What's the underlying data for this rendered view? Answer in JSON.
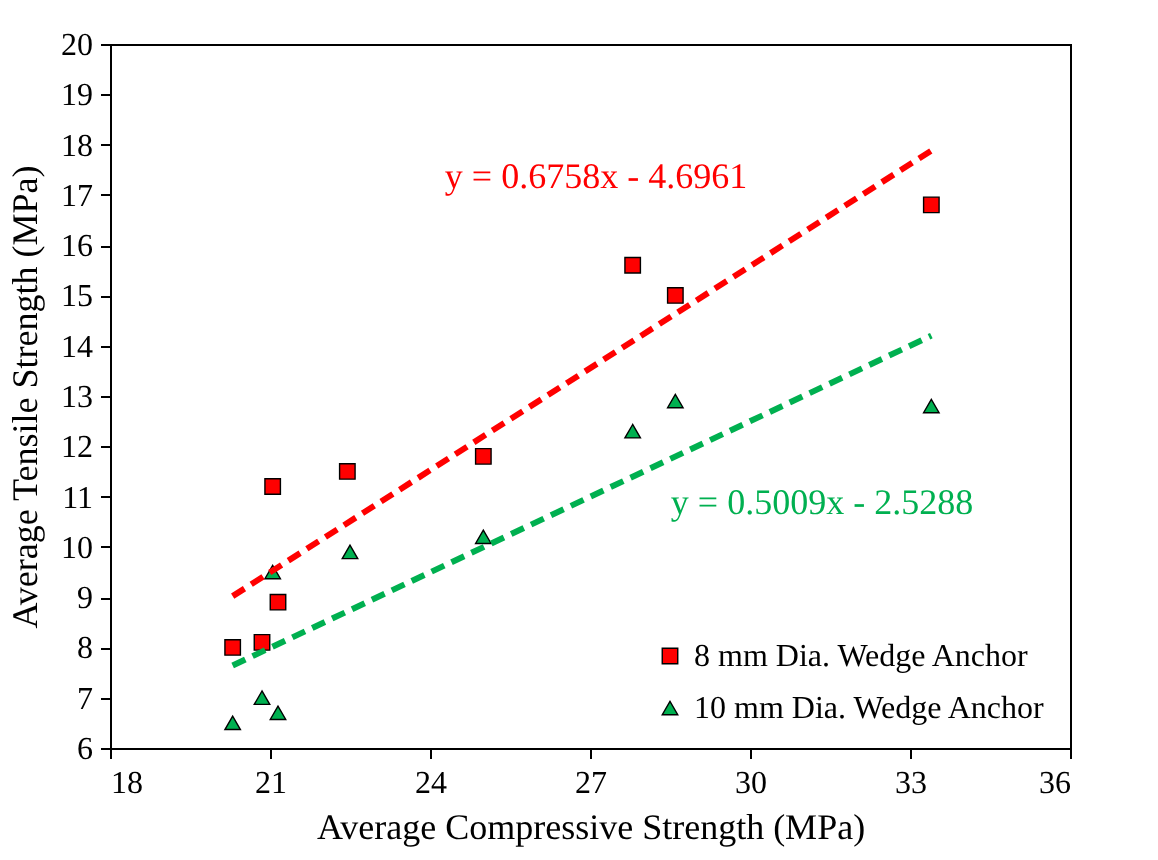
{
  "chart_data": {
    "type": "scatter",
    "xlabel": "Average Compressive Strength (MPa)",
    "ylabel": "Average Tensile Strength (MPa)",
    "xlim": [
      18,
      36
    ],
    "xticks": [
      18,
      21,
      24,
      27,
      30,
      33,
      36
    ],
    "ylim": [
      6,
      20
    ],
    "yticks": [
      6,
      7,
      8,
      9,
      10,
      11,
      12,
      13,
      14,
      15,
      16,
      17,
      18,
      19,
      20
    ],
    "grid": false,
    "legend": "bottom right",
    "series": [
      {
        "name": "8 mm Dia. Wedge Anchor",
        "color": "#ff0000",
        "marker": "square",
        "x": [
          20.3,
          20.85,
          21.05,
          21.15,
          22.45,
          25.0,
          27.8,
          28.6,
          33.4
        ],
        "values": [
          8.0,
          8.1,
          11.2,
          8.9,
          11.5,
          11.8,
          15.6,
          15.0,
          16.8
        ]
      },
      {
        "name": "10 mm Dia. Wedge Anchor",
        "color": "#00b050",
        "marker": "triangle",
        "x": [
          20.3,
          20.85,
          21.05,
          21.15,
          22.5,
          25.0,
          27.8,
          28.6,
          33.4
        ],
        "values": [
          6.5,
          7.0,
          9.5,
          6.7,
          9.9,
          10.2,
          12.3,
          12.9,
          12.8
        ]
      },
      {
        "type": "line",
        "color": "#ff0000",
        "line_style": "dashed",
        "x": [
          20.3,
          33.4
        ],
        "values": [
          9.02,
          17.88
        ]
      },
      {
        "type": "line",
        "color": "#00b050",
        "line_style": "dashed",
        "x": [
          20.3,
          33.4
        ],
        "values": [
          7.64,
          14.2
        ]
      }
    ],
    "annotations": [
      "y = 0.6758x - 4.6961",
      "y = 0.5009x - 2.5288"
    ]
  }
}
